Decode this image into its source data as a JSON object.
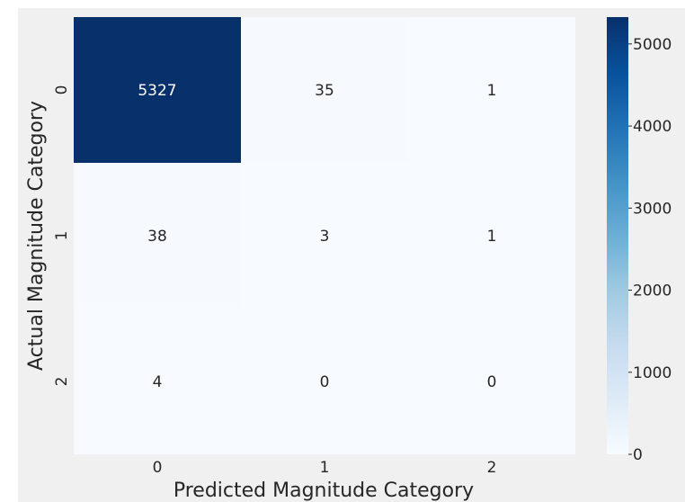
{
  "chart_data": {
    "type": "heatmap",
    "title": "",
    "xlabel": "Predicted Magnitude Category",
    "ylabel": "Actual Magnitude Category",
    "x_categories": [
      "0",
      "1",
      "2"
    ],
    "y_categories": [
      "0",
      "1",
      "2"
    ],
    "values": [
      [
        5327,
        35,
        1
      ],
      [
        38,
        3,
        1
      ],
      [
        4,
        0,
        0
      ]
    ],
    "annotations": true,
    "colormap": "Blues",
    "colorbar": {
      "range": [
        0,
        5327
      ],
      "ticks": [
        0,
        1000,
        2000,
        3000,
        4000,
        5000
      ]
    },
    "colors": {
      "figure_background": "#f0f0f0",
      "low": "#f7fbff",
      "high": "#08306b",
      "text_on_dark": "#ffffff",
      "text_on_light": "#262626"
    }
  }
}
